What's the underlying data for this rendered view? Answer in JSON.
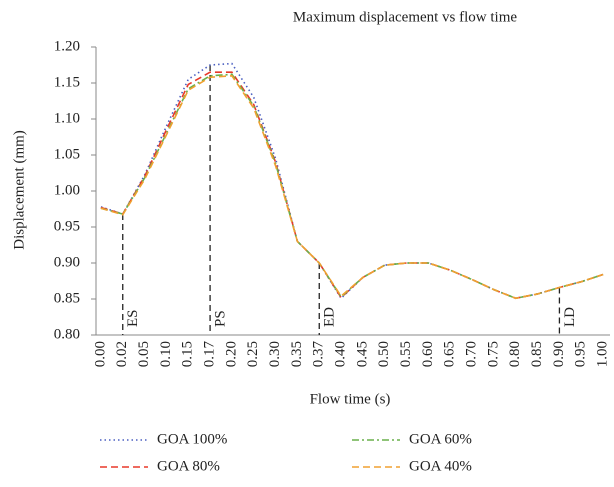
{
  "chart_data": {
    "type": "line",
    "title": "Maximum displacement vs flow time",
    "x_label": "Flow time (s)",
    "y_label": "Displacement (mm)",
    "categories": [
      "0.00",
      "0.02",
      "0.05",
      "0.10",
      "0.15",
      "0.17",
      "0.20",
      "0.25",
      "0.30",
      "0.35",
      "0.37",
      "0.40",
      "0.45",
      "0.50",
      "0.55",
      "0.60",
      "0.65",
      "0.70",
      "0.75",
      "0.80",
      "0.85",
      "0.90",
      "0.95",
      "1.00"
    ],
    "ylim": [
      0.8,
      1.2
    ],
    "yticks": [
      {
        "value": 0.8,
        "label": "0.80"
      },
      {
        "value": 0.85,
        "label": "0.85"
      },
      {
        "value": 0.9,
        "label": "0.90"
      },
      {
        "value": 0.95,
        "label": "0.95"
      },
      {
        "value": 1.0,
        "label": "1.00"
      },
      {
        "value": 1.05,
        "label": "1.05"
      },
      {
        "value": 1.1,
        "label": "1.10"
      },
      {
        "value": 1.15,
        "label": "1.15"
      },
      {
        "value": 1.2,
        "label": "1.20"
      }
    ],
    "series": [
      {
        "name": "GOA 100%",
        "color": "#4a5fc1",
        "dash": "dotted",
        "values": [
          0.978,
          0.968,
          1.022,
          1.09,
          1.155,
          1.175,
          1.177,
          1.13,
          1.045,
          0.93,
          0.9,
          0.851,
          0.88,
          0.897,
          0.9,
          0.9,
          0.89,
          0.877,
          0.863,
          0.851,
          0.857,
          0.866,
          0.874,
          0.884
        ]
      },
      {
        "name": "GOA 80%",
        "color": "#e8392a",
        "dash": "dashed",
        "values": [
          0.977,
          0.968,
          1.02,
          1.085,
          1.148,
          1.165,
          1.165,
          1.12,
          1.04,
          0.93,
          0.9,
          0.852,
          0.88,
          0.897,
          0.9,
          0.9,
          0.89,
          0.877,
          0.863,
          0.851,
          0.857,
          0.866,
          0.874,
          0.884
        ]
      },
      {
        "name": "GOA 60%",
        "color": "#6ab04c",
        "dash": "dashdot",
        "values": [
          0.976,
          0.968,
          1.018,
          1.08,
          1.142,
          1.16,
          1.162,
          1.118,
          1.038,
          0.93,
          0.9,
          0.853,
          0.88,
          0.897,
          0.9,
          0.9,
          0.89,
          0.877,
          0.863,
          0.851,
          0.857,
          0.866,
          0.874,
          0.884
        ]
      },
      {
        "name": "GOA 40%",
        "color": "#f0a030",
        "dash": "dashed",
        "values": [
          0.976,
          0.967,
          1.016,
          1.078,
          1.14,
          1.158,
          1.16,
          1.115,
          1.035,
          0.93,
          0.9,
          0.854,
          0.88,
          0.897,
          0.9,
          0.9,
          0.89,
          0.877,
          0.863,
          0.851,
          0.857,
          0.866,
          0.874,
          0.884
        ]
      }
    ],
    "annotations": [
      {
        "text": "ES",
        "x": "0.02"
      },
      {
        "text": "PS",
        "x": "0.17"
      },
      {
        "text": "ED",
        "x": "0.37"
      },
      {
        "text": "LD",
        "x": "0.90"
      }
    ]
  }
}
